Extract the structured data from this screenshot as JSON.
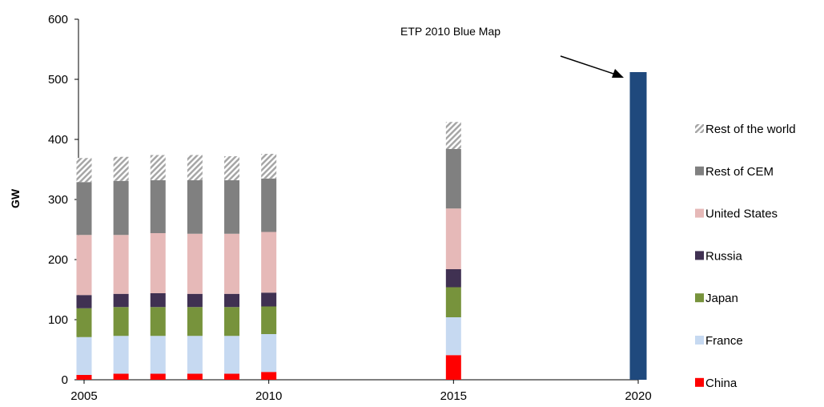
{
  "chart_data": {
    "type": "bar",
    "stacked": true,
    "ylabel": "GW",
    "ylim": [
      0,
      600
    ],
    "yticks": [
      0,
      100,
      200,
      300,
      400,
      500,
      600
    ],
    "xlim": [
      2005,
      2020
    ],
    "xticks": [
      2005,
      2010,
      2015,
      2020
    ],
    "categories": [
      2005,
      2006,
      2007,
      2008,
      2009,
      2010,
      2015
    ],
    "series": [
      {
        "name": "China",
        "color": "#ff0000",
        "values": [
          8,
          10,
          10,
          10,
          10,
          13,
          41
        ]
      },
      {
        "name": "France",
        "color": "#c6d9f1",
        "values": [
          63,
          63,
          63,
          63,
          63,
          63,
          63
        ]
      },
      {
        "name": "Japan",
        "color": "#77933c",
        "values": [
          48,
          48,
          48,
          48,
          48,
          46,
          50
        ]
      },
      {
        "name": "Russia",
        "color": "#403152",
        "values": [
          22,
          22,
          23,
          22,
          22,
          23,
          30
        ]
      },
      {
        "name": "United States",
        "color": "#e6b9b8",
        "values": [
          100,
          98,
          100,
          100,
          100,
          101,
          101
        ]
      },
      {
        "name": "Rest of CEM",
        "color": "#808080",
        "values": [
          88,
          90,
          88,
          89,
          89,
          89,
          99
        ]
      },
      {
        "name": "Rest of the world",
        "color": "#a6a6a6",
        "pattern": "hatch",
        "values": [
          40,
          40,
          42,
          42,
          40,
          41,
          45
        ]
      }
    ],
    "target": {
      "label": "ETP 2010 Blue Map",
      "x": 2020,
      "value": 512,
      "color": "#1f497d"
    },
    "legend_position": "right"
  }
}
